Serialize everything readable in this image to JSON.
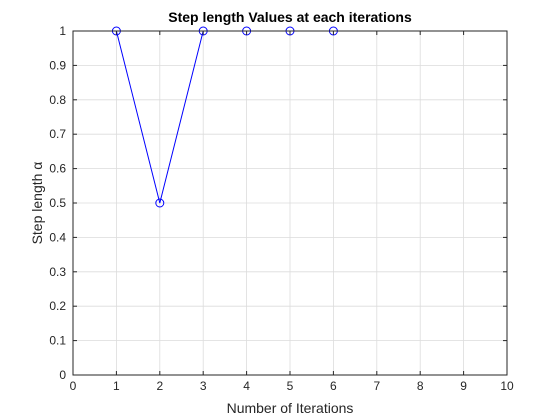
{
  "chart_data": {
    "type": "line",
    "title": "Step length Values at each iterations",
    "xlabel": "Number of Iterations",
    "ylabel": "Step length α",
    "xlim": [
      0,
      10
    ],
    "ylim": [
      0,
      1
    ],
    "x_ticks": [
      0,
      1,
      2,
      3,
      4,
      5,
      6,
      7,
      8,
      9,
      10
    ],
    "y_ticks": [
      0,
      0.1,
      0.2,
      0.3,
      0.4,
      0.5,
      0.6,
      0.7,
      0.8,
      0.9,
      1
    ],
    "grid": true,
    "series": [
      {
        "x": [
          1,
          2,
          3,
          4,
          5,
          6
        ],
        "values": [
          1,
          0.5,
          1,
          1,
          1,
          1
        ],
        "color": "#0000ff",
        "marker": "circle"
      }
    ]
  }
}
